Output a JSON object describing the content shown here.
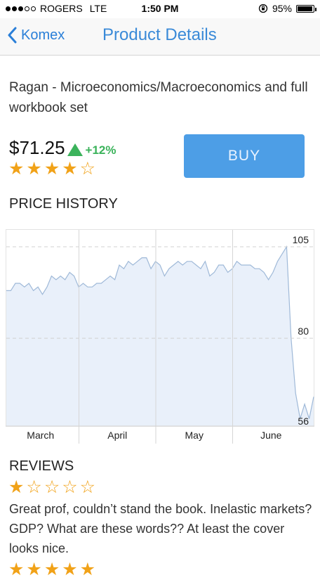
{
  "status": {
    "carrier": "ROGERS",
    "network": "LTE",
    "time": "1:50 PM",
    "battery": "95%",
    "battery_level": 0.95
  },
  "nav": {
    "back_label": "Komex",
    "title": "Product Details"
  },
  "product": {
    "title": "Ragan - Microeconomics/Macroeconomics and full workbook set",
    "price": "$71.25",
    "change": "+12%",
    "rating_stars": "★★★★☆",
    "rating": 4,
    "buy_label": "BUY"
  },
  "price_history": {
    "heading": "PRICE HISTORY"
  },
  "chart_data": {
    "type": "area",
    "ylim": [
      56,
      105
    ],
    "y_ticks": [
      {
        "label": "105",
        "value": 105
      },
      {
        "label": "80",
        "value": 80
      },
      {
        "label": "56",
        "value": 56
      }
    ],
    "x_labels": [
      "March",
      "April",
      "May",
      "June"
    ],
    "series": [
      {
        "values": [
          93,
          93,
          95,
          95,
          94,
          95,
          93,
          94,
          92,
          94,
          97,
          96,
          97,
          96,
          98,
          97,
          94,
          95,
          94,
          94,
          95,
          95,
          96,
          97,
          96,
          100,
          99,
          101,
          100,
          101,
          102,
          102,
          99,
          101,
          100,
          97,
          99,
          100,
          101,
          100,
          101,
          101,
          100,
          99,
          101,
          97,
          98,
          100,
          100,
          98,
          99,
          101,
          100,
          100,
          100,
          99,
          99,
          98,
          96,
          98,
          101,
          103,
          105,
          80,
          65,
          58,
          62,
          58,
          64
        ],
        "color": "#9fb9d8",
        "fill": "#e9f0fa"
      }
    ],
    "grid": true
  },
  "reviews": {
    "heading": "REVIEWS",
    "items": [
      {
        "stars": "★☆☆☆☆",
        "rating": 1,
        "text": "Great prof, couldn’t stand the book. Inelastic markets? GDP? What are these words?? At least the cover looks nice."
      },
      {
        "stars": "★★★★★",
        "rating": 5
      }
    ]
  }
}
